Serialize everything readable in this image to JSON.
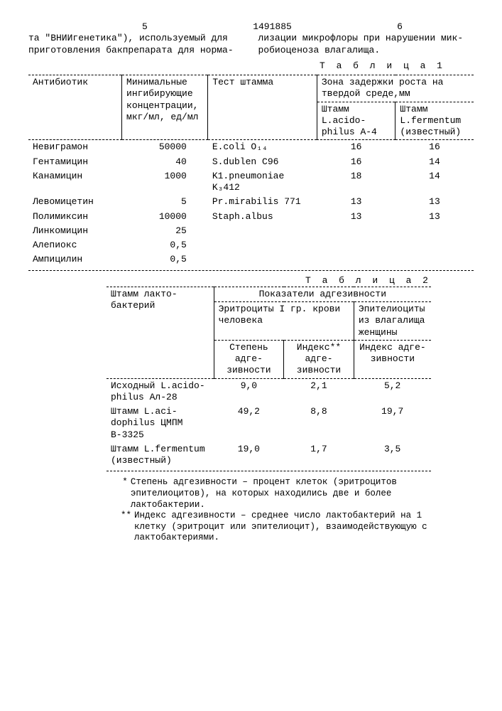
{
  "header": {
    "left_num": "5",
    "doc_num": "1491885",
    "right_num": "6"
  },
  "intro": {
    "left": "та \"ВНИИгенетика\"), используемый для приготовления бакпрепарата для норма-",
    "right": "лизации микрофлоры при нарушении мик­робиоценоза влагалища."
  },
  "table1": {
    "caption": "Т а б л и ц а  1",
    "headers": {
      "col0": "Антибиотик",
      "col1": "Минималь­ные инги­бирующие концентра­ции, мкг/мл, ед/мл",
      "col2": "Тест штамма",
      "col3_span": "Зона задержки роста на твердой среде,мм",
      "col3": "Штамм L.acido­philus А-4",
      "col4": "Штамм L.fermen­tum (из­вестный)"
    },
    "rows": [
      {
        "a": "Невиграмон",
        "b": "50000",
        "c": "E.coli O₁₄",
        "d": "16",
        "e": "16"
      },
      {
        "a": "Гентамицин",
        "b": "40",
        "c": "S.dublen C96",
        "d": "16",
        "e": "14"
      },
      {
        "a": "Канамицин",
        "b": "1000",
        "c": "K1.pneumo­niae K₃412",
        "d": "18",
        "e": "14"
      },
      {
        "a": "Левомицетин",
        "b": "5",
        "c": "Pr.mirabi­lis 771",
        "d": "13",
        "e": "13"
      },
      {
        "a": "Полимиксин",
        "b": "10000",
        "c": "Staph.albus",
        "d": "13",
        "e": "13"
      },
      {
        "a": "Линкомицин",
        "b": "25",
        "c": "",
        "d": "",
        "e": ""
      },
      {
        "a": "Алепиокс",
        "b": "0,5",
        "c": "",
        "d": "",
        "e": ""
      },
      {
        "a": "Ампицилин",
        "b": "0,5",
        "c": "",
        "d": "",
        "e": ""
      }
    ]
  },
  "table2": {
    "caption": "Т а б л и ц а  2",
    "headers": {
      "col0": "Штамм лакто­бактерий",
      "span": "Показатели адгезивности",
      "sub1": "Эритроциты I гр. крови человека",
      "sub2": "Эпителио­циты из влагалища женщины",
      "c1": "Степень адге­зивности",
      "c2": "Индекс** адге­зивности",
      "c3": "Индекс адге­зивности"
    },
    "rows": [
      {
        "a": "Исходный L.acido­philus Ал-28",
        "b": "9,0",
        "c": "2,1",
        "d": "5,2"
      },
      {
        "a": "Штамм L.aci­dophilus ЦМПМ В-3325",
        "b": "49,2",
        "c": "8,8",
        "d": "19,7"
      },
      {
        "a": "Штамм L.fer­mentum (из­вестный)",
        "b": "19,0",
        "c": "1,7",
        "d": "3,5"
      }
    ]
  },
  "footnotes": {
    "f1_mark": "*",
    "f1": "Степень адгезивности – процент клеток (эритро­цитов эпителиоцитов), на которых находились две и более лактобактерии.",
    "f2_mark": "**",
    "f2": "Индекс адгезивности – среднее число лактобак­терий на 1 клетку (эритроцит или эпителиоцит), взаимодействующую с лактобактериями."
  }
}
